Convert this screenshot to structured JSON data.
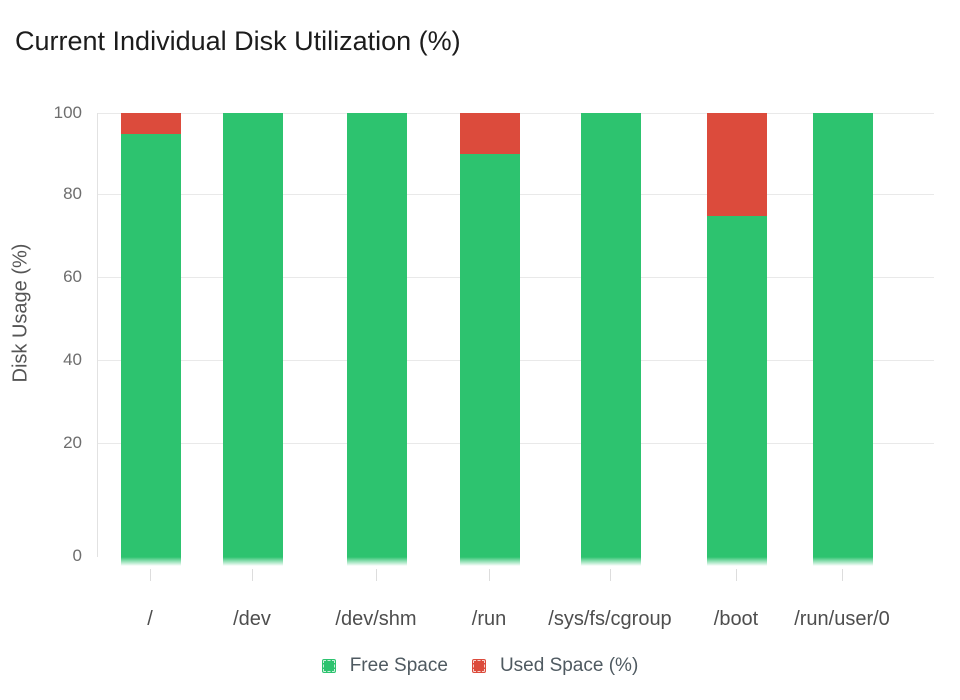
{
  "title": "Current Individual Disk Utilization (%)",
  "chart_data": {
    "type": "bar",
    "stacked": true,
    "title": "Current Individual Disk Utilization (%)",
    "xlabel": "",
    "ylabel": "Disk Usage (%)",
    "categories": [
      "/",
      "/dev",
      "/dev/shm",
      "/run",
      "/sys/fs/cgroup",
      "/boot",
      "/run/user/0"
    ],
    "series": [
      {
        "name": "Free Space",
        "color": "#2DC36F",
        "values": [
          95,
          100,
          100,
          90,
          100,
          75,
          100
        ]
      },
      {
        "name": "Used Space (%)",
        "color": "#DC4B3C",
        "values": [
          5,
          0,
          0,
          10,
          0,
          25,
          0
        ]
      }
    ],
    "yticks": [
      100,
      80,
      60,
      40,
      20,
      0
    ],
    "ylim": [
      0,
      100
    ],
    "grid": true,
    "legend_position": "bottom",
    "colors": {
      "grid": "#E9E9E9",
      "axis": "#E2E2E2",
      "tick": "#DDDDDD",
      "y_tick_label": "#6E6E6E",
      "category_label": "#4E4E4E",
      "legend_label": "#4F5A61",
      "title": "#1C1C1C",
      "background": "#FFFFFF"
    }
  }
}
